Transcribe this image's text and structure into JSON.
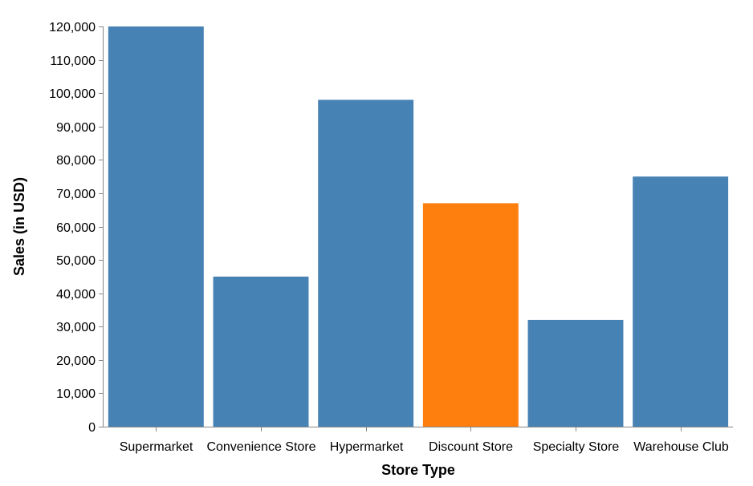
{
  "chart_data": {
    "type": "bar",
    "categories": [
      "Supermarket",
      "Convenience Store",
      "Hypermarket",
      "Discount Store",
      "Specialty Store",
      "Warehouse Club"
    ],
    "values": [
      120000,
      45000,
      98000,
      67000,
      32000,
      75000
    ],
    "highlight": "Discount Store",
    "colors": {
      "default": "#4682b4",
      "highlight": "#ff7f0e"
    },
    "xlabel": "Store Type",
    "ylabel": "Sales (in USD)",
    "ylim": [
      0,
      120000
    ],
    "yticks": [
      0,
      10000,
      20000,
      30000,
      40000,
      50000,
      60000,
      70000,
      80000,
      90000,
      100000,
      110000,
      120000
    ],
    "grid": false,
    "legend": "none"
  }
}
